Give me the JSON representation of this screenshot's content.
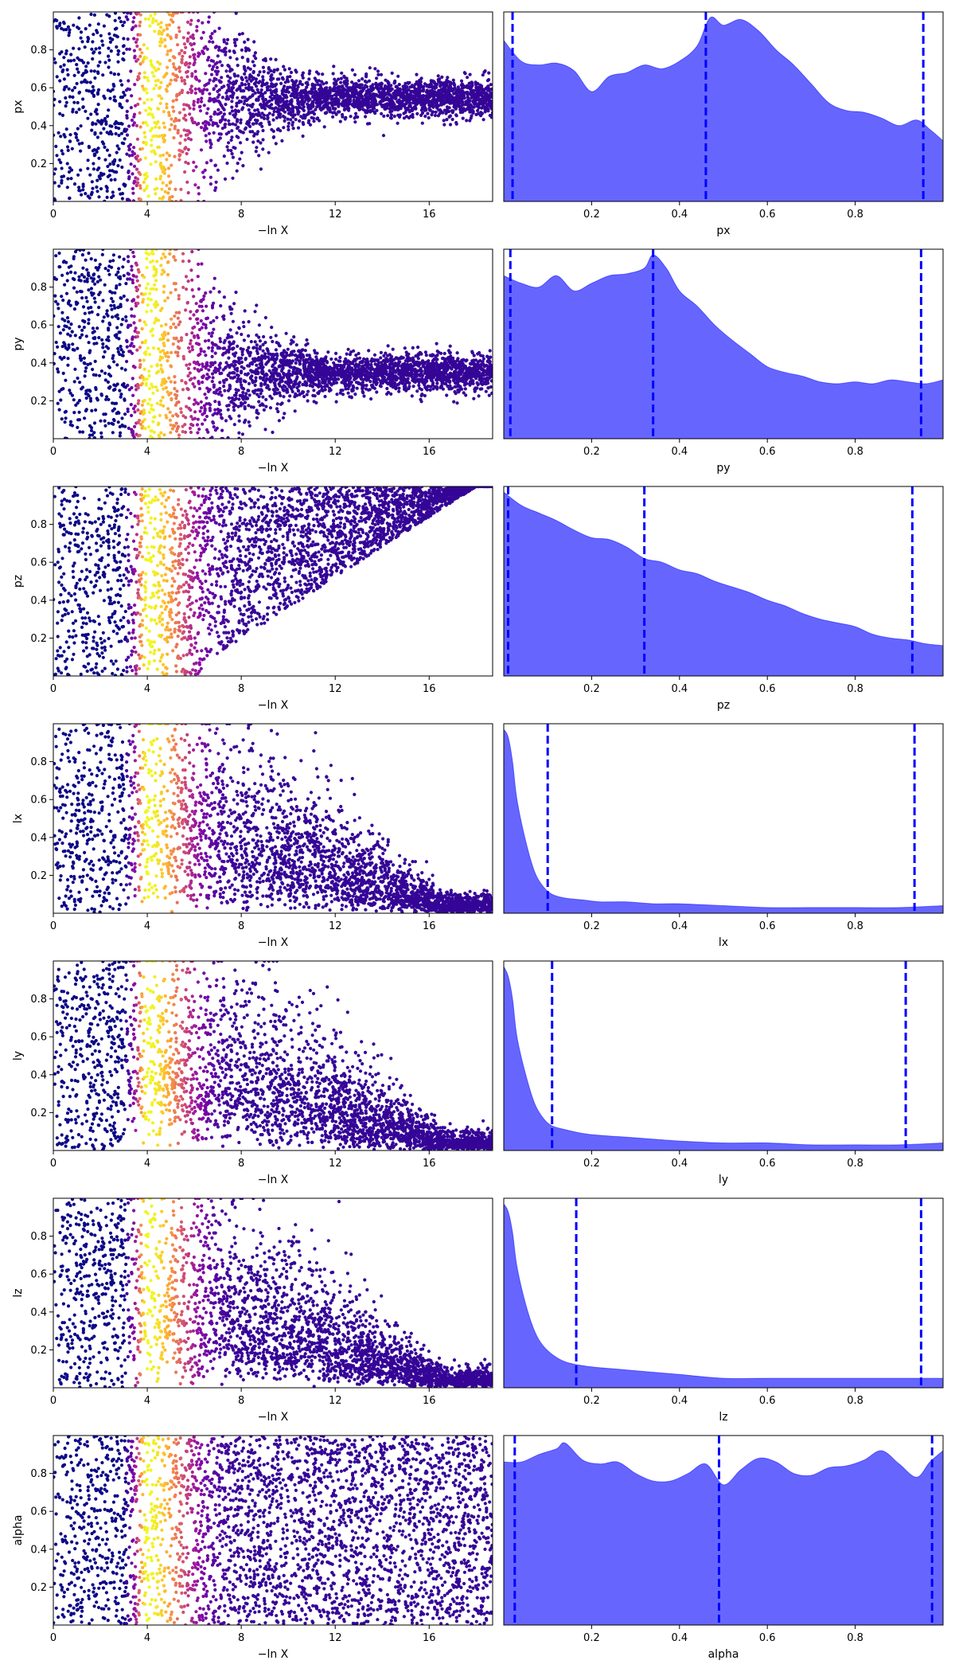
{
  "chart_data": [
    {
      "type": "scatter",
      "row": 0,
      "panel": "trace",
      "xlabel": "−ln X",
      "ylabel": "px",
      "xlim": [
        0,
        18.7
      ],
      "ylim": [
        0,
        1
      ],
      "xticks": [
        "0",
        "4",
        "8",
        "12",
        "16"
      ],
      "xtick_values": [
        0,
        4,
        8,
        12,
        16
      ],
      "yticks": [
        "0.2",
        "0.4",
        "0.6",
        "0.8"
      ],
      "ytick_values": [
        0.2,
        0.4,
        0.6,
        0.8
      ],
      "colormap": "plasma",
      "bright_band_x": [
        3.1,
        5.2
      ],
      "posterior_center": 0.55,
      "tail_end_x": 18.7
    },
    {
      "type": "area",
      "row": 0,
      "panel": "kde",
      "xlabel": "px",
      "xlim": [
        0,
        1
      ],
      "xticks": [
        "0.2",
        "0.4",
        "0.6",
        "0.8"
      ],
      "xtick_values": [
        0.2,
        0.4,
        0.6,
        0.8
      ],
      "x": [
        0,
        0.04,
        0.08,
        0.12,
        0.16,
        0.2,
        0.24,
        0.28,
        0.32,
        0.36,
        0.4,
        0.44,
        0.47,
        0.5,
        0.54,
        0.58,
        0.62,
        0.66,
        0.7,
        0.74,
        0.78,
        0.82,
        0.86,
        0.9,
        0.94,
        0.97,
        1.0
      ],
      "y": [
        0.85,
        0.74,
        0.72,
        0.73,
        0.69,
        0.58,
        0.66,
        0.68,
        0.72,
        0.7,
        0.74,
        0.82,
        0.97,
        0.93,
        0.96,
        0.9,
        0.8,
        0.72,
        0.62,
        0.52,
        0.48,
        0.47,
        0.44,
        0.4,
        0.43,
        0.38,
        0.32
      ],
      "ylim": [
        0,
        1
      ],
      "quantiles": [
        0.02,
        0.46,
        0.955
      ],
      "fill_color": "#6666ff",
      "line_color": "#0000ff"
    },
    {
      "type": "scatter",
      "row": 1,
      "panel": "trace",
      "xlabel": "−ln X",
      "ylabel": "py",
      "xlim": [
        0,
        18.7
      ],
      "ylim": [
        0,
        1
      ],
      "xticks": [
        "0",
        "4",
        "8",
        "12",
        "16"
      ],
      "xtick_values": [
        0,
        4,
        8,
        12,
        16
      ],
      "yticks": [
        "0.2",
        "0.4",
        "0.6",
        "0.8"
      ],
      "ytick_values": [
        0.2,
        0.4,
        0.6,
        0.8
      ],
      "colormap": "plasma",
      "bright_band_x": [
        3.1,
        5.2
      ],
      "posterior_center": 0.35,
      "tail_end_x": 18.7
    },
    {
      "type": "area",
      "row": 1,
      "panel": "kde",
      "xlabel": "py",
      "xlim": [
        0,
        1
      ],
      "xticks": [
        "0.2",
        "0.4",
        "0.6",
        "0.8"
      ],
      "xtick_values": [
        0.2,
        0.4,
        0.6,
        0.8
      ],
      "x": [
        0,
        0.04,
        0.08,
        0.12,
        0.16,
        0.2,
        0.24,
        0.28,
        0.32,
        0.34,
        0.37,
        0.4,
        0.44,
        0.48,
        0.52,
        0.56,
        0.6,
        0.64,
        0.68,
        0.72,
        0.76,
        0.8,
        0.84,
        0.88,
        0.92,
        0.96,
        1.0
      ],
      "y": [
        0.86,
        0.82,
        0.8,
        0.86,
        0.78,
        0.82,
        0.86,
        0.87,
        0.9,
        0.97,
        0.9,
        0.78,
        0.7,
        0.6,
        0.52,
        0.45,
        0.38,
        0.35,
        0.33,
        0.3,
        0.29,
        0.3,
        0.29,
        0.31,
        0.3,
        0.29,
        0.31
      ],
      "ylim": [
        0,
        1
      ],
      "quantiles": [
        0.015,
        0.34,
        0.95
      ],
      "fill_color": "#6666ff",
      "line_color": "#0000ff"
    },
    {
      "type": "scatter",
      "row": 2,
      "panel": "trace",
      "xlabel": "−ln X",
      "ylabel": "pz",
      "xlim": [
        0,
        18.7
      ],
      "ylim": [
        0,
        1
      ],
      "xticks": [
        "0",
        "4",
        "8",
        "12",
        "16"
      ],
      "xtick_values": [
        0,
        4,
        8,
        12,
        16
      ],
      "yticks": [
        "0.2",
        "0.4",
        "0.6",
        "0.8"
      ],
      "ytick_values": [
        0.2,
        0.4,
        0.6,
        0.8
      ],
      "colormap": "plasma",
      "bright_band_x": [
        3.1,
        5.2
      ],
      "posterior_center": 1.0,
      "tail_end_x": 18.7
    },
    {
      "type": "area",
      "row": 2,
      "panel": "kde",
      "xlabel": "pz",
      "xlim": [
        0,
        1
      ],
      "xticks": [
        "0.2",
        "0.4",
        "0.6",
        "0.8"
      ],
      "xtick_values": [
        0.2,
        0.4,
        0.6,
        0.8
      ],
      "x": [
        0,
        0.04,
        0.08,
        0.12,
        0.16,
        0.2,
        0.24,
        0.28,
        0.32,
        0.36,
        0.4,
        0.44,
        0.48,
        0.52,
        0.56,
        0.6,
        0.64,
        0.68,
        0.72,
        0.76,
        0.8,
        0.84,
        0.88,
        0.92,
        0.96,
        1.0
      ],
      "y": [
        0.97,
        0.9,
        0.86,
        0.82,
        0.77,
        0.73,
        0.72,
        0.68,
        0.62,
        0.6,
        0.56,
        0.54,
        0.5,
        0.47,
        0.44,
        0.4,
        0.37,
        0.33,
        0.3,
        0.28,
        0.26,
        0.22,
        0.2,
        0.19,
        0.17,
        0.16
      ],
      "ylim": [
        0,
        1
      ],
      "quantiles": [
        0.01,
        0.32,
        0.93
      ],
      "fill_color": "#6666ff",
      "line_color": "#0000ff"
    },
    {
      "type": "scatter",
      "row": 3,
      "panel": "trace",
      "xlabel": "−ln X",
      "ylabel": "lx",
      "xlim": [
        0,
        18.7
      ],
      "ylim": [
        0,
        1
      ],
      "xticks": [
        "0",
        "4",
        "8",
        "12",
        "16"
      ],
      "xtick_values": [
        0,
        4,
        8,
        12,
        16
      ],
      "yticks": [
        "0.2",
        "0.4",
        "0.6",
        "0.8"
      ],
      "ytick_values": [
        0.2,
        0.4,
        0.6,
        0.8
      ],
      "colormap": "plasma",
      "bright_band_x": [
        3.1,
        5.2
      ],
      "posterior_center": 0.0,
      "tail_end_x": 18.7
    },
    {
      "type": "area",
      "row": 3,
      "panel": "kde",
      "xlabel": "lx",
      "xlim": [
        0,
        1
      ],
      "xticks": [
        "0.2",
        "0.4",
        "0.6",
        "0.8"
      ],
      "xtick_values": [
        0.2,
        0.4,
        0.6,
        0.8
      ],
      "x": [
        0,
        0.01,
        0.02,
        0.03,
        0.05,
        0.07,
        0.09,
        0.11,
        0.14,
        0.18,
        0.22,
        0.28,
        0.34,
        0.4,
        0.5,
        0.6,
        0.7,
        0.8,
        0.9,
        1.0
      ],
      "y": [
        0.97,
        0.93,
        0.8,
        0.6,
        0.38,
        0.22,
        0.14,
        0.1,
        0.08,
        0.07,
        0.06,
        0.06,
        0.05,
        0.05,
        0.04,
        0.03,
        0.03,
        0.03,
        0.03,
        0.04
      ],
      "ylim": [
        0,
        1
      ],
      "quantiles": [
        0.1,
        0.935
      ],
      "fill_color": "#6666ff",
      "line_color": "#0000ff"
    },
    {
      "type": "scatter",
      "row": 4,
      "panel": "trace",
      "xlabel": "−ln X",
      "ylabel": "ly",
      "xlim": [
        0,
        18.7
      ],
      "ylim": [
        0,
        1
      ],
      "xticks": [
        "0",
        "4",
        "8",
        "12",
        "16"
      ],
      "xtick_values": [
        0,
        4,
        8,
        12,
        16
      ],
      "yticks": [
        "0.2",
        "0.4",
        "0.6",
        "0.8"
      ],
      "ytick_values": [
        0.2,
        0.4,
        0.6,
        0.8
      ],
      "colormap": "plasma",
      "bright_band_x": [
        3.1,
        5.2
      ],
      "posterior_center": 0.0,
      "tail_end_x": 18.7
    },
    {
      "type": "area",
      "row": 4,
      "panel": "kde",
      "xlabel": "ly",
      "xlim": [
        0,
        1
      ],
      "xticks": [
        "0.2",
        "0.4",
        "0.6",
        "0.8"
      ],
      "xtick_values": [
        0.2,
        0.4,
        0.6,
        0.8
      ],
      "x": [
        0,
        0.01,
        0.02,
        0.03,
        0.05,
        0.07,
        0.09,
        0.11,
        0.14,
        0.18,
        0.22,
        0.28,
        0.34,
        0.4,
        0.5,
        0.6,
        0.7,
        0.8,
        0.9,
        1.0
      ],
      "y": [
        0.97,
        0.92,
        0.8,
        0.6,
        0.4,
        0.25,
        0.17,
        0.13,
        0.11,
        0.09,
        0.08,
        0.07,
        0.06,
        0.05,
        0.04,
        0.04,
        0.03,
        0.03,
        0.03,
        0.04
      ],
      "ylim": [
        0,
        1
      ],
      "quantiles": [
        0.11,
        0.915
      ],
      "fill_color": "#6666ff",
      "line_color": "#0000ff"
    },
    {
      "type": "scatter",
      "row": 5,
      "panel": "trace",
      "xlabel": "−ln X",
      "ylabel": "lz",
      "xlim": [
        0,
        18.7
      ],
      "ylim": [
        0,
        1
      ],
      "xticks": [
        "0",
        "4",
        "8",
        "12",
        "16"
      ],
      "xtick_values": [
        0,
        4,
        8,
        12,
        16
      ],
      "yticks": [
        "0.2",
        "0.4",
        "0.6",
        "0.8"
      ],
      "ytick_values": [
        0.2,
        0.4,
        0.6,
        0.8
      ],
      "colormap": "plasma",
      "bright_band_x": [
        3.1,
        5.2
      ],
      "posterior_center": 0.0,
      "tail_end_x": 18.7
    },
    {
      "type": "area",
      "row": 5,
      "panel": "kde",
      "xlabel": "lz",
      "xlim": [
        0,
        1
      ],
      "xticks": [
        "0.2",
        "0.4",
        "0.6",
        "0.8"
      ],
      "xtick_values": [
        0.2,
        0.4,
        0.6,
        0.8
      ],
      "x": [
        0,
        0.01,
        0.02,
        0.03,
        0.05,
        0.07,
        0.09,
        0.12,
        0.15,
        0.2,
        0.25,
        0.3,
        0.4,
        0.5,
        0.6,
        0.7,
        0.8,
        0.9,
        1.0
      ],
      "y": [
        0.97,
        0.93,
        0.82,
        0.64,
        0.44,
        0.3,
        0.22,
        0.16,
        0.13,
        0.11,
        0.1,
        0.09,
        0.07,
        0.05,
        0.05,
        0.05,
        0.05,
        0.05,
        0.05
      ],
      "ylim": [
        0,
        1
      ],
      "quantiles": [
        0.165,
        0.95
      ],
      "fill_color": "#6666ff",
      "line_color": "#0000ff"
    },
    {
      "type": "scatter",
      "row": 6,
      "panel": "trace",
      "xlabel": "−ln X",
      "ylabel": "alpha",
      "xlim": [
        0,
        18.7
      ],
      "ylim": [
        0,
        1
      ],
      "xticks": [
        "0",
        "4",
        "8",
        "12",
        "16"
      ],
      "xtick_values": [
        0,
        4,
        8,
        12,
        16
      ],
      "yticks": [
        "0.2",
        "0.4",
        "0.6",
        "0.8"
      ],
      "ytick_values": [
        0.2,
        0.4,
        0.6,
        0.8
      ],
      "colormap": "plasma",
      "bright_band_x": [
        3.1,
        5.2
      ],
      "posterior_center": 0.5,
      "tail_end_x": 18.7
    },
    {
      "type": "area",
      "row": 6,
      "panel": "kde",
      "xlabel": "alpha",
      "xlim": [
        0,
        1
      ],
      "xticks": [
        "0.2",
        "0.4",
        "0.6",
        "0.8"
      ],
      "xtick_values": [
        0.2,
        0.4,
        0.6,
        0.8
      ],
      "x": [
        0,
        0.04,
        0.08,
        0.12,
        0.14,
        0.18,
        0.22,
        0.26,
        0.3,
        0.34,
        0.38,
        0.42,
        0.46,
        0.5,
        0.54,
        0.58,
        0.62,
        0.66,
        0.7,
        0.74,
        0.78,
        0.82,
        0.86,
        0.9,
        0.94,
        0.97,
        1.0
      ],
      "y": [
        0.86,
        0.86,
        0.9,
        0.93,
        0.96,
        0.87,
        0.85,
        0.86,
        0.8,
        0.76,
        0.76,
        0.8,
        0.85,
        0.74,
        0.82,
        0.88,
        0.86,
        0.8,
        0.79,
        0.83,
        0.84,
        0.87,
        0.92,
        0.85,
        0.78,
        0.86,
        0.92
      ],
      "ylim": [
        0,
        1
      ],
      "quantiles": [
        0.025,
        0.49,
        0.975
      ],
      "fill_color": "#6666ff",
      "line_color": "#0000ff"
    }
  ]
}
